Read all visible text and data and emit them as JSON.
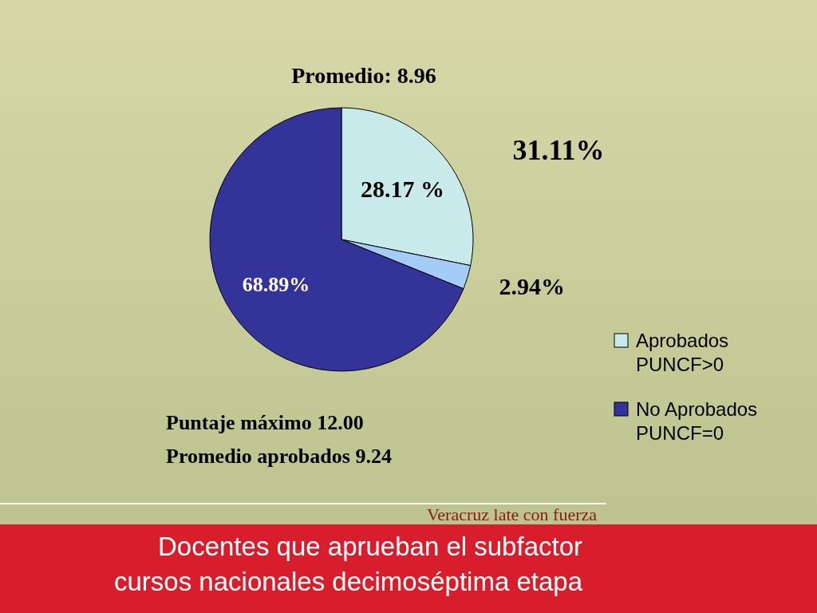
{
  "chart_data": {
    "type": "pie",
    "title": "Docentes que aprueban el subfactor\ncursos nacionales decimoséptima etapa",
    "subtitle": "Promedio: 8.96",
    "categories": [
      "Aprobados PUNCF>0",
      null,
      "No Aprobados PUNCF=0"
    ],
    "values": [
      28.17,
      2.94,
      68.89
    ],
    "colors": [
      "#c8eaea",
      "#a3cdf7",
      "#333399"
    ],
    "value_labels": [
      "28.17  %",
      "2.94%",
      "68.89%"
    ],
    "legend": "right",
    "annotations": [
      "31.11%",
      "Puntaje máximo 12.00",
      "Promedio aprobados 9.24",
      "Veracruz late con fuerza"
    ]
  }
}
